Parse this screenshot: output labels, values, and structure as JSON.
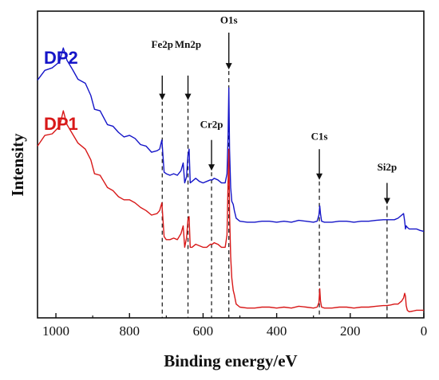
{
  "chart_data": {
    "type": "line",
    "title": "",
    "xlabel": "Binding energy/eV",
    "ylabel": "Intensity",
    "xlim": [
      1050,
      0
    ],
    "xaxis_reversed": true,
    "ylim": [
      0,
      100
    ],
    "xticks": [
      1000,
      800,
      600,
      400,
      200,
      0
    ],
    "yticks_shown": false,
    "grid": false,
    "legend": "inline text labels at top-left of each curve",
    "series": [
      {
        "name": "DP2",
        "color": "#1515c8",
        "x": [
          1050,
          1030,
          1010,
          990,
          980,
          970,
          955,
          940,
          920,
          905,
          895,
          880,
          860,
          845,
          830,
          815,
          800,
          785,
          770,
          755,
          740,
          725,
          718,
          712,
          706,
          700,
          690,
          680,
          670,
          660,
          654,
          650,
          645,
          641,
          638,
          635,
          630,
          620,
          610,
          600,
          590,
          580,
          575,
          570,
          560,
          550,
          540,
          535,
          532,
          530,
          528,
          525,
          522,
          518,
          515,
          510,
          500,
          480,
          460,
          440,
          420,
          400,
          380,
          360,
          340,
          320,
          300,
          290,
          285,
          283,
          281,
          278,
          270,
          250,
          230,
          210,
          190,
          170,
          150,
          130,
          110,
          100,
          90,
          80,
          70,
          60,
          55,
          52,
          50,
          48,
          45,
          40,
          30,
          20,
          10,
          0
        ],
        "y": [
          77.5,
          80.7,
          81.5,
          83.5,
          88,
          84,
          81,
          77.8,
          76.5,
          72.5,
          68,
          67.5,
          63,
          62.5,
          60.5,
          59,
          59.5,
          58.5,
          56.5,
          56,
          54,
          54.5,
          55,
          58,
          47.5,
          47,
          46.5,
          47,
          46.5,
          48,
          50.5,
          44,
          46,
          53,
          55,
          44,
          44.5,
          45.5,
          44.5,
          44,
          44.5,
          45,
          45,
          45.5,
          45,
          44,
          44,
          47,
          60,
          75,
          55,
          42.5,
          38,
          37,
          35,
          32.5,
          31.5,
          31.2,
          31.2,
          31.5,
          31.5,
          31.2,
          31.5,
          31.2,
          31.8,
          31.5,
          31.2,
          31.5,
          33.5,
          36.5,
          34,
          31.5,
          31.2,
          31.2,
          31.5,
          31.5,
          31.2,
          31.5,
          31.5,
          31.8,
          32,
          32,
          32,
          32,
          32.5,
          33.5,
          34,
          31.5,
          29,
          30,
          29.5,
          29,
          29,
          29,
          28.5,
          28.2
        ]
      },
      {
        "name": "DP1",
        "color": "#d81818",
        "x": [
          1050,
          1030,
          1010,
          990,
          980,
          970,
          955,
          940,
          920,
          905,
          895,
          880,
          860,
          845,
          830,
          815,
          800,
          785,
          770,
          755,
          740,
          725,
          718,
          712,
          706,
          700,
          690,
          680,
          670,
          660,
          654,
          650,
          645,
          641,
          638,
          635,
          630,
          620,
          610,
          600,
          590,
          580,
          575,
          570,
          560,
          550,
          540,
          535,
          532,
          530,
          528,
          525,
          522,
          518,
          515,
          510,
          500,
          480,
          460,
          440,
          420,
          400,
          380,
          360,
          340,
          320,
          300,
          290,
          285,
          283,
          281,
          278,
          270,
          250,
          230,
          210,
          190,
          170,
          150,
          130,
          110,
          100,
          90,
          80,
          70,
          60,
          55,
          52,
          50,
          48,
          45,
          40,
          30,
          20,
          10,
          0
        ],
        "y": [
          56,
          59.5,
          60,
          62.5,
          67.5,
          63,
          60,
          57,
          55,
          51.5,
          47,
          46.5,
          42.5,
          41.5,
          39.5,
          38.5,
          38.5,
          37.5,
          36,
          35,
          33.5,
          34,
          35,
          37.5,
          26.5,
          25.5,
          25.5,
          26,
          25.5,
          27.5,
          30,
          23,
          26,
          32,
          33,
          23,
          23,
          24,
          23.5,
          23,
          23,
          24,
          24,
          24.5,
          24,
          23,
          23,
          27,
          45,
          55,
          34,
          20,
          13,
          9,
          7.5,
          4.5,
          3.5,
          3.2,
          3.2,
          3.5,
          3.5,
          3.2,
          3.5,
          3.2,
          3.8,
          3.5,
          3.2,
          3.5,
          5,
          9.5,
          5.5,
          3.5,
          3.2,
          3.2,
          3.5,
          3.5,
          3.2,
          3.5,
          3.5,
          3.8,
          4,
          4,
          4.2,
          4.5,
          4.5,
          5.5,
          6.5,
          8,
          7,
          4,
          2.5,
          2,
          2.2,
          2.5,
          2.5,
          2.5
        ]
      }
    ],
    "annotations": [
      {
        "label": "Fe2p",
        "x": 711,
        "label_y": 88,
        "arrow_top": 79,
        "arrow_bottom": 71
      },
      {
        "label": "Mn2p",
        "x": 641,
        "label_y": 88,
        "arrow_top": 79,
        "arrow_bottom": 71
      },
      {
        "label": "Cr2p",
        "x": 577,
        "label_y": 62,
        "arrow_top": 58,
        "arrow_bottom": 48
      },
      {
        "label": "O1s",
        "x": 530,
        "label_y": 96,
        "arrow_top": 93,
        "arrow_bottom": 81
      },
      {
        "label": "C1s",
        "x": 284,
        "label_y": 58,
        "arrow_top": 55,
        "arrow_bottom": 45
      },
      {
        "label": "Si2p",
        "x": 100,
        "label_y": 48,
        "arrow_top": 44,
        "arrow_bottom": 37
      }
    ],
    "dashed_guides_to_axis": true
  }
}
